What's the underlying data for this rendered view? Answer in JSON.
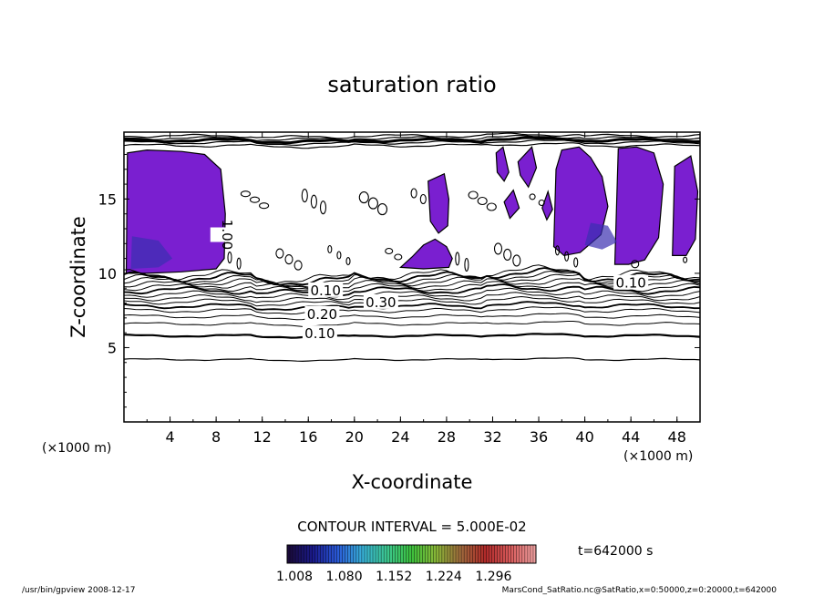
{
  "chart_data": {
    "type": "heatmap",
    "title": "saturation ratio",
    "xlabel": "X-coordinate",
    "ylabel": "Z-coordinate",
    "x_unit": "(×1000 m)",
    "y_unit": "(×1000 m)",
    "xlim": [
      0,
      50
    ],
    "ylim": [
      0,
      19.5
    ],
    "x_ticks": [
      "4",
      "8",
      "12",
      "16",
      "20",
      "24",
      "28",
      "32",
      "36",
      "40",
      "44",
      "48"
    ],
    "y_ticks": [
      "5",
      "10",
      "15"
    ],
    "contour_labels": [
      "0.10",
      "0.20",
      "0.30",
      "0.10",
      "1.00",
      "0.10"
    ],
    "contour_interval": "CONTOUR INTERVAL = 5.000E-02",
    "colorbar": {
      "ticks": [
        "1.008",
        "1.080",
        "1.152",
        "1.224",
        "1.296"
      ],
      "range": [
        1.008,
        1.296
      ],
      "colors": [
        "#1a0a3a",
        "#1a1a8c",
        "#2a5ad8",
        "#38b0d8",
        "#3cc890",
        "#3cc03c",
        "#8ab838",
        "#a06a3c",
        "#b02a2a",
        "#d85a5a",
        "#f0a0a0"
      ]
    },
    "contour_levels": [
      0.1,
      0.2,
      0.3
    ],
    "fill_color": "#7a1fd0",
    "fill_color_dark": "#3a2fb0",
    "time_label": "t=642000 s",
    "footer_left": "/usr/bin/gpview   2008-12-17",
    "footer_right": "MarsCond_SatRatio.nc@SatRatio,x=0:50000,z=0:20000,t=642000"
  }
}
